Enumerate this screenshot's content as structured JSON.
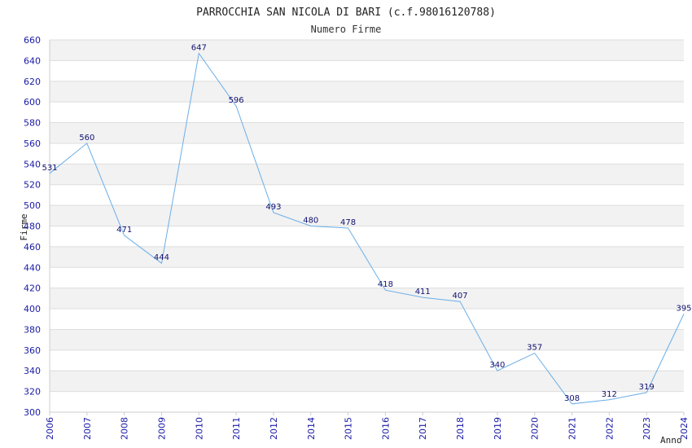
{
  "chart_data": {
    "type": "line",
    "title": "PARROCCHIA SAN NICOLA DI BARI (c.f.98016120788)",
    "subtitle": "Numero Firme",
    "xlabel": "Anno",
    "ylabel": "Firme",
    "x": [
      "2006",
      "2007",
      "2008",
      "2009",
      "2010",
      "2011",
      "2012",
      "2014",
      "2015",
      "2016",
      "2017",
      "2018",
      "2019",
      "2020",
      "2021",
      "2022",
      "2023",
      "2024"
    ],
    "series": [
      {
        "values": [
          531,
          560,
          471,
          444,
          647,
          596,
          493,
          480,
          478,
          418,
          411,
          407,
          340,
          357,
          308,
          312,
          319,
          395
        ]
      }
    ],
    "ylim": [
      300,
      660
    ],
    "yticks": [
      300,
      320,
      340,
      360,
      380,
      400,
      420,
      440,
      460,
      480,
      500,
      520,
      540,
      560,
      580,
      600,
      620,
      640,
      660
    ],
    "grid": true,
    "line_color": "#6aaee8",
    "band_color": "#f2f2f2",
    "tick_color": "#1a1aa6",
    "label_color": "#101070"
  }
}
